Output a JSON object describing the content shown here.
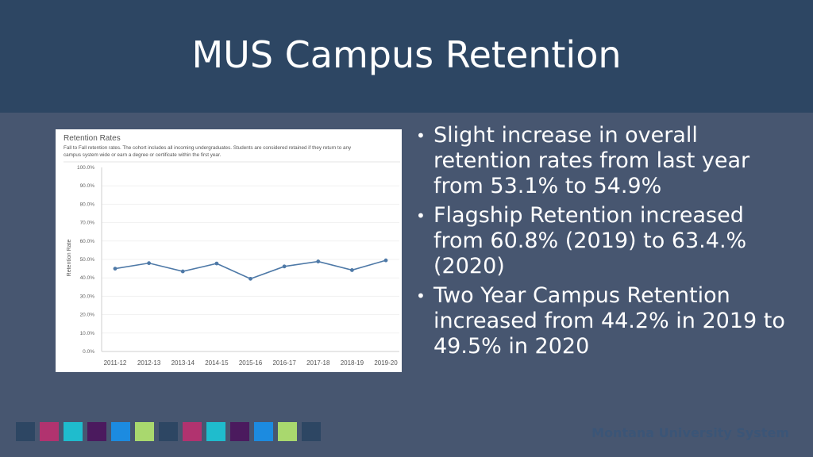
{
  "slide": {
    "title": "MUS Campus Retention",
    "brand": "Montana University System"
  },
  "bullets": [
    "Slight increase in overall retention rates from last year from 53.1% to 54.9%",
    "Flagship Retention increased from 60.8% (2019) to 63.4.% (2020)",
    "Two Year Campus Retention increased from 44.2% in 2019 to 49.5% in 2020"
  ],
  "footer_colors": [
    "#2d4663",
    "#b1336f",
    "#1fbccd",
    "#4b1a5e",
    "#1c8be0",
    "#a9d86e",
    "#2d4663",
    "#b1336f",
    "#1fbccd",
    "#4b1a5e",
    "#1c8be0",
    "#a9d86e",
    "#2d4663"
  ],
  "chart_data": {
    "type": "line",
    "title": "Retention Rates",
    "subtitle": "Fall to Fall retention rates. The cohort includes all incoming undergraduates. Students are considered retained if they return to any campus system wide or earn a degree or certificate within the first year.",
    "xlabel": "",
    "ylabel": "Retention Rate",
    "categories": [
      "2011-12",
      "2012-13",
      "2013-14",
      "2014-15",
      "2015-16",
      "2016-17",
      "2017-18",
      "2018-19",
      "2019-20"
    ],
    "series": [
      {
        "values": [
          45.0,
          48.0,
          43.5,
          47.8,
          39.5,
          46.2,
          48.9,
          44.2,
          49.5
        ]
      }
    ],
    "ylim": [
      0,
      100
    ],
    "yticks": [
      "0.0%",
      "10.0%",
      "20.0%",
      "30.0%",
      "40.0%",
      "50.0%",
      "60.0%",
      "70.0%",
      "80.0%",
      "90.0%",
      "100.0%"
    ],
    "line_color": "#4e79a7",
    "grid": true
  }
}
